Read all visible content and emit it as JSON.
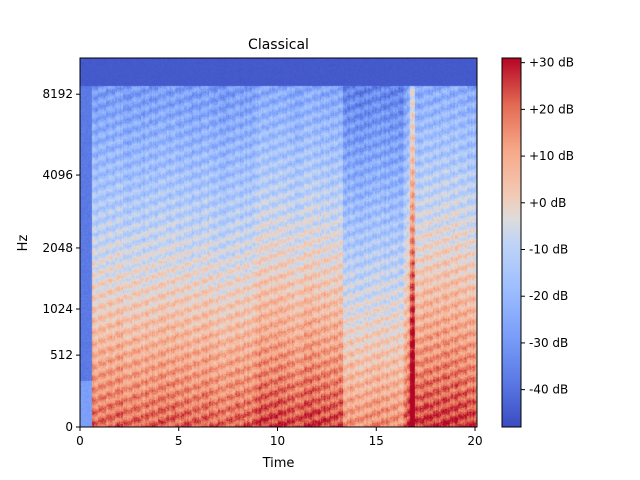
{
  "chart_data": {
    "type": "heatmap",
    "title": "Classical",
    "xlabel": "Time",
    "ylabel": "Hz",
    "xlim": [
      0,
      20.1
    ],
    "x_ticks": [
      {
        "value": 0,
        "label": "0"
      },
      {
        "value": 5,
        "label": "5"
      },
      {
        "value": 10,
        "label": "10"
      },
      {
        "value": 15,
        "label": "15"
      },
      {
        "value": 20,
        "label": "20"
      }
    ],
    "y_scale": "mel",
    "ylim": [
      0,
      11025
    ],
    "y_ticks": [
      {
        "value": 0,
        "label": "0"
      },
      {
        "value": 512,
        "label": "512"
      },
      {
        "value": 1024,
        "label": "1024"
      },
      {
        "value": 2048,
        "label": "2048"
      },
      {
        "value": 4096,
        "label": "4096"
      },
      {
        "value": 8192,
        "label": "8192"
      }
    ],
    "colorbar": {
      "colormap": "coolwarm",
      "range_db": [
        -48,
        31
      ],
      "ticks": [
        {
          "value": 30,
          "label": "+30 dB"
        },
        {
          "value": 20,
          "label": "+20 dB"
        },
        {
          "value": 10,
          "label": "+10 dB"
        },
        {
          "value": 0,
          "label": "+0 dB"
        },
        {
          "value": -10,
          "label": "-10 dB"
        },
        {
          "value": -20,
          "label": "-20 dB"
        },
        {
          "value": -30,
          "label": "-30 dB"
        },
        {
          "value": -40,
          "label": "-40 dB"
        }
      ]
    },
    "colors": {
      "cold": "#3b4cc0",
      "neutral": "#dddcdc",
      "hot": "#b40426"
    },
    "loud_segments_time": [
      [
        0.6,
        8.9
      ],
      [
        8.9,
        13.3
      ],
      [
        16.6,
        20.0
      ]
    ],
    "quiet_segments_time": [
      [
        13.3,
        16.4
      ]
    ],
    "transient_time": 16.8,
    "ylim_content_hz": [
      0,
      8800
    ],
    "grid": false,
    "legend": "colorbar-right"
  }
}
